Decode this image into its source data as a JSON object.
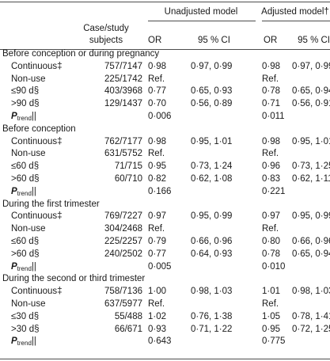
{
  "header": {
    "group_unadjusted": "Unadjusted model",
    "group_adjusted": "Adjusted model†",
    "col_subjects": "Case/study subjects",
    "col_or_unadj": "OR",
    "col_ci_unadj": "95 % CI",
    "col_or_adj": "OR",
    "col_ci_adj": "95 % CI"
  },
  "rows": [
    {
      "type": "section",
      "label": "Before conception or during pregnancy"
    },
    {
      "type": "data",
      "label": "Continuous‡",
      "subjects": "757/7147",
      "or_unadj": "0·98",
      "ci_unadj": "0·97, 0·99",
      "or_adj": "0·98",
      "ci_adj": "0·97, 0·99"
    },
    {
      "type": "data",
      "label": "Non-use",
      "subjects": "225/1742",
      "or_unadj": "Ref.",
      "ci_unadj": "",
      "or_adj": "Ref.",
      "ci_adj": ""
    },
    {
      "type": "data",
      "label": "≤90 d§",
      "subjects": "403/3968",
      "or_unadj": "0·77",
      "ci_unadj": "0·65, 0·93",
      "or_adj": "0·78",
      "ci_adj": "0·65, 0·94"
    },
    {
      "type": "data",
      "label": ">90 d§",
      "subjects": "129/1437",
      "or_unadj": "0·70",
      "ci_unadj": "0·56, 0·89",
      "or_adj": "0·71",
      "ci_adj": "0·56, 0·91"
    },
    {
      "type": "ptrend",
      "label_main": "P",
      "label_sub": "trend",
      "label_mark": "||",
      "p_unadj": "0·006",
      "p_adj": "0·011"
    },
    {
      "type": "section",
      "label": "Before conception"
    },
    {
      "type": "data",
      "label": "Continuous‡",
      "subjects": "762/7177",
      "or_unadj": "0·98",
      "ci_unadj": "0·95, 1·01",
      "or_adj": "0·98",
      "ci_adj": "0·95, 1·01"
    },
    {
      "type": "data",
      "label": "Non-use",
      "subjects": "631/5752",
      "or_unadj": "Ref.",
      "ci_unadj": "",
      "or_adj": "Ref.",
      "ci_adj": ""
    },
    {
      "type": "data",
      "label": "≤60 d§",
      "subjects": "71/715",
      "or_unadj": "0·95",
      "ci_unadj": "0·73, 1·24",
      "or_adj": "0·96",
      "ci_adj": "0·73, 1·25"
    },
    {
      "type": "data",
      "label": ">60 d§",
      "subjects": "60/710",
      "or_unadj": "0·82",
      "ci_unadj": "0·62, 1·08",
      "or_adj": "0·83",
      "ci_adj": "0·62, 1·11"
    },
    {
      "type": "ptrend",
      "label_main": "P",
      "label_sub": "trend",
      "label_mark": "||",
      "p_unadj": "0·166",
      "p_adj": "0·221"
    },
    {
      "type": "section",
      "label": "During the first trimester"
    },
    {
      "type": "data",
      "label": "Continuous‡",
      "subjects": "769/7227",
      "or_unadj": "0·97",
      "ci_unadj": "0·95, 0·99",
      "or_adj": "0·97",
      "ci_adj": "0·95, 0·99"
    },
    {
      "type": "data",
      "label": "Non-use",
      "subjects": "304/2468",
      "or_unadj": "Ref.",
      "ci_unadj": "",
      "or_adj": "Ref.",
      "ci_adj": ""
    },
    {
      "type": "data",
      "label": "≤60 d§",
      "subjects": "225/2257",
      "or_unadj": "0·79",
      "ci_unadj": "0·66, 0·96",
      "or_adj": "0·80",
      "ci_adj": "0·66, 0·96"
    },
    {
      "type": "data",
      "label": ">60 d§",
      "subjects": "240/2502",
      "or_unadj": "0·77",
      "ci_unadj": "0·64, 0·93",
      "or_adj": "0·78",
      "ci_adj": "0·65, 0·94"
    },
    {
      "type": "ptrend",
      "label_main": "P",
      "label_sub": "trend",
      "label_mark": "||",
      "p_unadj": "0·005",
      "p_adj": "0·010"
    },
    {
      "type": "section",
      "label": "During the second or third trimester"
    },
    {
      "type": "data",
      "label": "Continuous‡",
      "subjects": "758/7136",
      "or_unadj": "1·00",
      "ci_unadj": "0·98, 1·03",
      "or_adj": "1·01",
      "ci_adj": "0·98, 1·03"
    },
    {
      "type": "data",
      "label": "Non-use",
      "subjects": "637/5977",
      "or_unadj": "Ref.",
      "ci_unadj": "",
      "or_adj": "Ref.",
      "ci_adj": ""
    },
    {
      "type": "data",
      "label": "≤30 d§",
      "subjects": "55/488",
      "or_unadj": "1·02",
      "ci_unadj": "0·76, 1·38",
      "or_adj": "1·05",
      "ci_adj": "0·78, 1·41"
    },
    {
      "type": "data",
      "label": ">30 d§",
      "subjects": "66/671",
      "or_unadj": "0·93",
      "ci_unadj": "0·71, 1·22",
      "or_adj": "0·95",
      "ci_adj": "0·72, 1·25"
    },
    {
      "type": "ptrend",
      "label_main": "P",
      "label_sub": "trend",
      "label_mark": "||",
      "p_unadj": "0·643",
      "p_adj": "0·775"
    }
  ]
}
